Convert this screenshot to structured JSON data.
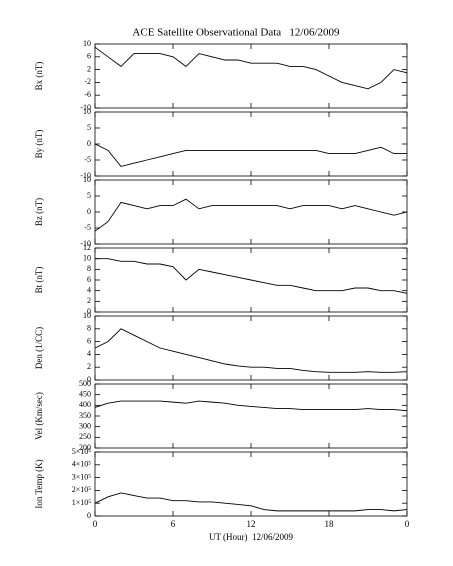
{
  "chart_data": [
    {
      "type": "line",
      "title": "ACE Satellite Observational Data   12/06/2009",
      "ylabel": "Bx (nT)",
      "color": "#000000",
      "x": [
        0,
        1,
        2,
        3,
        4,
        5,
        6,
        7,
        8,
        9,
        10,
        11,
        12,
        13,
        14,
        15,
        16,
        17,
        18,
        19,
        20,
        21,
        22,
        23,
        24
      ],
      "values": [
        9,
        6,
        3,
        7,
        7,
        7,
        6,
        3,
        7,
        6,
        5,
        5,
        4,
        4,
        4,
        3,
        3,
        2,
        0,
        -2,
        -3,
        -4,
        -2,
        2,
        1
      ],
      "xlim": [
        0,
        24
      ],
      "ylim": [
        -10,
        10
      ],
      "yticks": [
        10,
        6,
        2,
        -2,
        -6,
        -10
      ]
    },
    {
      "type": "line",
      "ylabel": "By (nT)",
      "color": "#000000",
      "x": [
        0,
        1,
        2,
        3,
        4,
        5,
        6,
        7,
        8,
        9,
        10,
        11,
        12,
        13,
        14,
        15,
        16,
        17,
        18,
        19,
        20,
        21,
        22,
        23,
        24
      ],
      "values": [
        0,
        -2,
        -7,
        -6,
        -5,
        -4,
        -3,
        -2,
        -2,
        -2,
        -2,
        -2,
        -2,
        -2,
        -2,
        -2,
        -2,
        -2,
        -3,
        -3,
        -3,
        -2,
        -1,
        -3,
        -3
      ],
      "xlim": [
        0,
        24
      ],
      "ylim": [
        -10,
        10
      ],
      "yticks": [
        10,
        5,
        0,
        -5,
        -10
      ]
    },
    {
      "type": "line",
      "ylabel": "Bz (nT)",
      "color": "#000000",
      "x": [
        0,
        1,
        2,
        3,
        4,
        5,
        6,
        7,
        8,
        9,
        10,
        11,
        12,
        13,
        14,
        15,
        16,
        17,
        18,
        19,
        20,
        21,
        22,
        23,
        24
      ],
      "values": [
        -6,
        -3,
        3,
        2,
        1,
        2,
        2,
        4,
        1,
        2,
        2,
        2,
        2,
        2,
        2,
        1,
        2,
        2,
        2,
        1,
        2,
        1,
        0,
        -1,
        0
      ],
      "xlim": [
        0,
        24
      ],
      "ylim": [
        -10,
        10
      ],
      "yticks": [
        10,
        5,
        0,
        -5,
        -10
      ]
    },
    {
      "type": "line",
      "ylabel": "Bt (nT)",
      "color": "#000000",
      "x": [
        0,
        1,
        2,
        3,
        4,
        5,
        6,
        7,
        8,
        9,
        10,
        11,
        12,
        13,
        14,
        15,
        16,
        17,
        18,
        19,
        20,
        21,
        22,
        23,
        24
      ],
      "values": [
        10,
        10,
        9.5,
        9.5,
        9,
        9,
        8.5,
        6,
        8,
        7.5,
        7,
        6.5,
        6,
        5.5,
        5,
        5,
        4.5,
        4,
        4,
        4,
        4.5,
        4.5,
        4,
        4,
        3.5
      ],
      "xlim": [
        0,
        24
      ],
      "ylim": [
        0,
        12
      ],
      "yticks": [
        12,
        10,
        8,
        6,
        4,
        2,
        0
      ]
    },
    {
      "type": "line",
      "ylabel": "Den (1/CC)",
      "color": "#000000",
      "x": [
        0,
        1,
        2,
        3,
        4,
        5,
        6,
        7,
        8,
        9,
        10,
        11,
        12,
        13,
        14,
        15,
        16,
        17,
        18,
        19,
        20,
        21,
        22,
        23,
        24
      ],
      "values": [
        5,
        6,
        8,
        7,
        6,
        5,
        4.5,
        4,
        3.5,
        3,
        2.5,
        2.2,
        2,
        2,
        1.8,
        1.8,
        1.5,
        1.3,
        1.2,
        1.2,
        1.2,
        1.3,
        1.2,
        1.2,
        1.3
      ],
      "xlim": [
        0,
        24
      ],
      "ylim": [
        0,
        10
      ],
      "yticks": [
        10,
        8,
        6,
        4,
        2,
        0
      ]
    },
    {
      "type": "line",
      "ylabel": "Vel (Km/sec)",
      "color": "#000000",
      "x": [
        0,
        1,
        2,
        3,
        4,
        5,
        6,
        7,
        8,
        9,
        10,
        11,
        12,
        13,
        14,
        15,
        16,
        17,
        18,
        19,
        20,
        21,
        22,
        23,
        24
      ],
      "values": [
        390,
        410,
        420,
        420,
        420,
        420,
        415,
        410,
        420,
        415,
        410,
        400,
        395,
        390,
        385,
        385,
        380,
        380,
        380,
        380,
        380,
        385,
        380,
        380,
        375
      ],
      "xlim": [
        0,
        24
      ],
      "ylim": [
        200,
        500
      ],
      "yticks": [
        500,
        450,
        400,
        350,
        300,
        250,
        200
      ]
    },
    {
      "type": "line",
      "ylabel": "Ion Temp (K)",
      "xlabel": "UT (Hour)  12/06/2009",
      "color": "#000000",
      "x": [
        0,
        1,
        2,
        3,
        4,
        5,
        6,
        7,
        8,
        9,
        10,
        11,
        12,
        13,
        14,
        15,
        16,
        17,
        18,
        19,
        20,
        21,
        22,
        23,
        24
      ],
      "values": [
        100000,
        150000,
        180000,
        160000,
        140000,
        140000,
        120000,
        120000,
        110000,
        110000,
        100000,
        90000,
        80000,
        50000,
        40000,
        40000,
        40000,
        40000,
        40000,
        40000,
        40000,
        50000,
        50000,
        40000,
        50000
      ],
      "xlim": [
        0,
        24
      ],
      "xticks": [
        0,
        6,
        12,
        18,
        {
          "value": 24,
          "label": "0"
        }
      ],
      "ylim": [
        0,
        500000
      ],
      "yticks": [
        {
          "value": 500000,
          "label": "5×10⁵"
        },
        {
          "value": 400000,
          "label": "4×10⁵"
        },
        {
          "value": 300000,
          "label": "3×10⁵"
        },
        {
          "value": 200000,
          "label": "2×10⁵"
        },
        {
          "value": 100000,
          "label": "1×10⁵"
        },
        0
      ]
    }
  ]
}
